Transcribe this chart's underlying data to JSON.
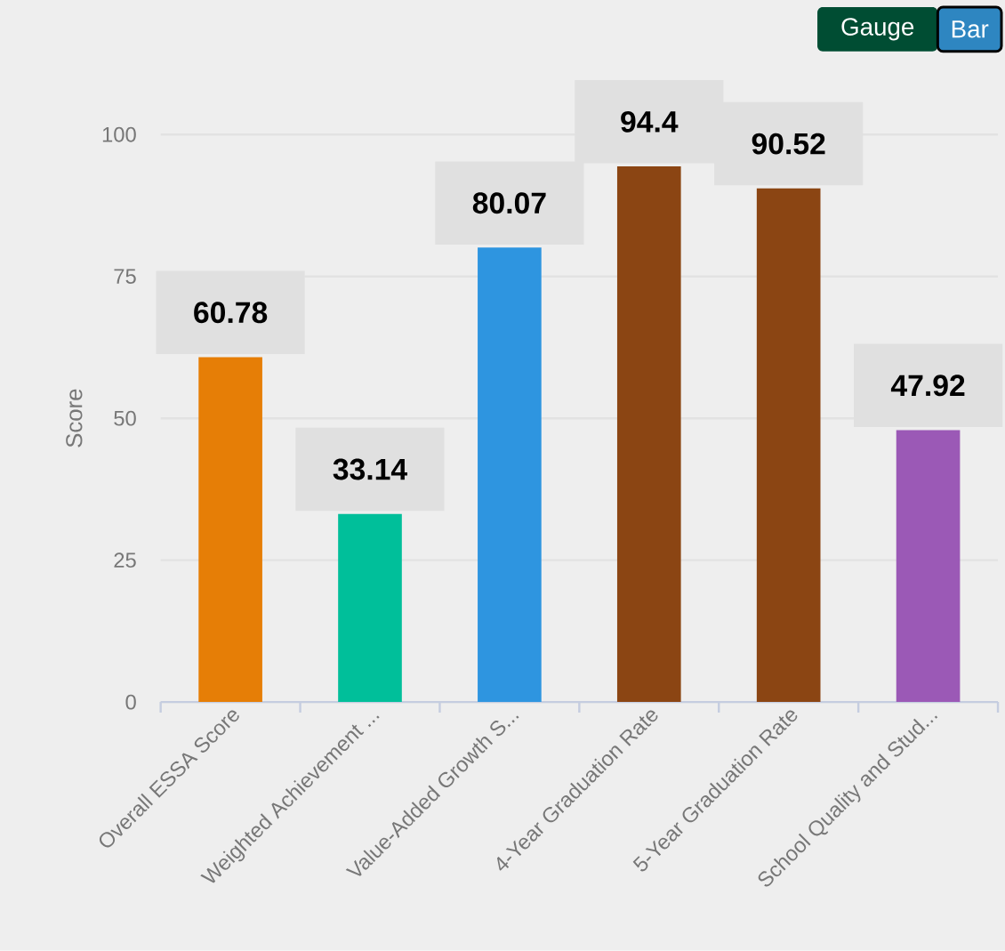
{
  "chart_data": {
    "type": "bar",
    "ylabel": "Score",
    "categories": [
      "Overall ESSA Score",
      "Weighted Achievement ...",
      "Value-Added Growth S...",
      "4-Year Graduation Rate",
      "5-Year Graduation Rate",
      "School Quality and Stud..."
    ],
    "values": [
      60.78,
      33.14,
      80.07,
      94.4,
      90.52,
      47.92
    ],
    "colors": [
      "#e67e06",
      "#00bf9a",
      "#2e95e0",
      "#8b4513",
      "#8b4513",
      "#9b59b6"
    ],
    "ylim": [
      0,
      100
    ],
    "yticks": [
      0,
      25,
      50,
      75,
      100
    ],
    "grid": "y",
    "data_labels": true,
    "annotations": [
      "Gauge",
      "Bar"
    ]
  }
}
